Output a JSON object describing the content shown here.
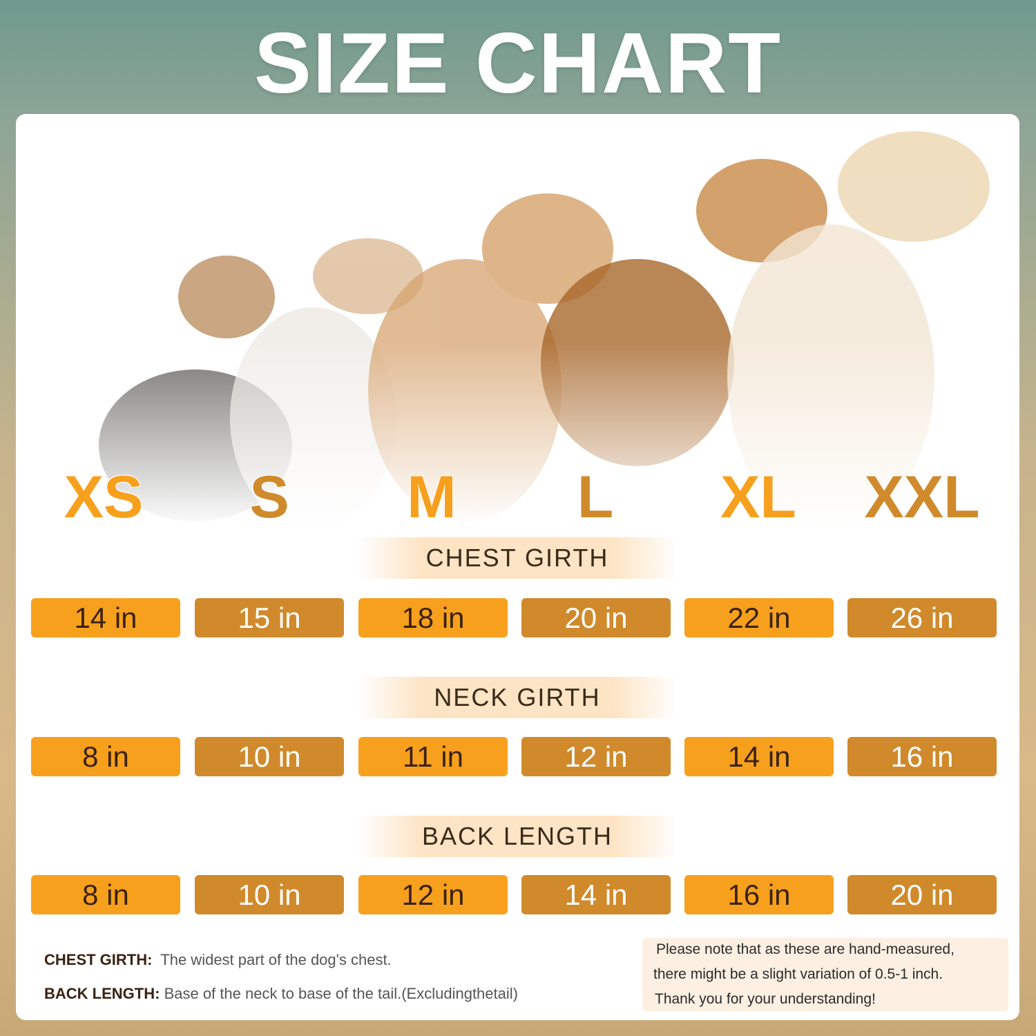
{
  "title": "SIZE CHART",
  "colors": {
    "orange": "#F7A01E",
    "tan": "#D08A2C",
    "dark_text": "#3A2210"
  },
  "sizes": [
    "XS",
    "S",
    "M",
    "L",
    "XL",
    "XXL"
  ],
  "rows": [
    {
      "label": "CHEST GIRTH",
      "values": [
        "14 in",
        "15 in",
        "18 in",
        "20 in",
        "22 in",
        "26 in"
      ]
    },
    {
      "label": "NECK GIRTH",
      "values": [
        "8 in",
        "10 in",
        "11 in",
        "12 in",
        "14 in",
        "16 in"
      ]
    },
    {
      "label": "BACK LENGTH",
      "values": [
        "8 in",
        "10 in",
        "12 in",
        "14 in",
        "16 in",
        "20 in"
      ]
    }
  ],
  "definitions": [
    {
      "term": "CHEST GIRTH:",
      "text": "The widest part of the dog's chest."
    },
    {
      "term": "BACK LENGTH:",
      "text": "Base of the neck to base of the tail.(Excludingthetail)"
    }
  ],
  "note": [
    "Please note that as these are hand-measured,",
    "there might be a slight variation of 0.5-1 inch.",
    "Thank you for your understanding!"
  ]
}
